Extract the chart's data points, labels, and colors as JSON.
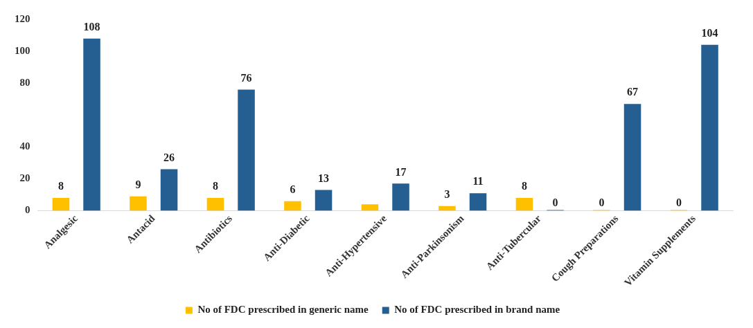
{
  "chart_data": {
    "type": "bar",
    "categories": [
      "Analgesic",
      "Antacid",
      "Antibiotics",
      "Anti-Diabetic",
      "Anti-Hypertensive",
      "Anti-Parkinsonism",
      "Anti-Tubercular",
      "Cough Preparations",
      "Vitamin Supplements"
    ],
    "series": [
      {
        "name": "No of FDC prescribed in generic name",
        "color": "#ffc000",
        "values": [
          8,
          9,
          8,
          6,
          4,
          3,
          8,
          0,
          0
        ],
        "value_labels": [
          "8",
          "9",
          "8",
          "6",
          null,
          "3",
          "8",
          "0",
          "0"
        ]
      },
      {
        "name": "No of FDC prescribed in brand name",
        "color": "#255e91",
        "values": [
          108,
          26,
          76,
          13,
          17,
          11,
          0,
          67,
          104
        ],
        "value_labels": [
          "108",
          "26",
          "76",
          "13",
          "17",
          "11",
          "0",
          "67",
          "104"
        ]
      }
    ],
    "ylim": [
      0,
      120
    ],
    "yticks": [
      0,
      20,
      40,
      80,
      100,
      120
    ],
    "grid": false,
    "legend": "bottom"
  }
}
